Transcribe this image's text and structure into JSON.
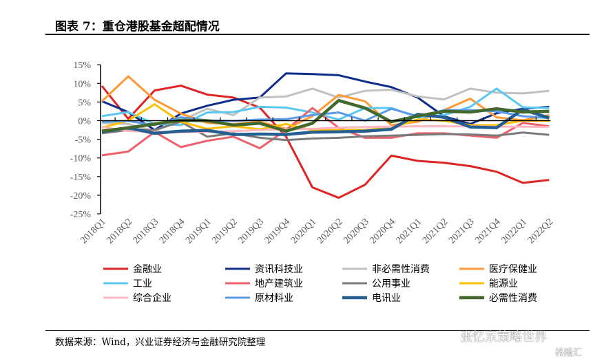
{
  "header": {
    "title": "图表 7：重仓港股基金超配情况"
  },
  "footer": {
    "source": "数据来源：Wind，兴业证券经济与金融研究院整理"
  },
  "watermark": {
    "text": "张忆东策略世界",
    "brand": "格隆汇"
  },
  "chart_data": {
    "type": "line",
    "title": "重仓港股基金超配情况",
    "xlabel": "",
    "ylabel": "",
    "ylim": [
      -25,
      15
    ],
    "yticks": [
      15,
      10,
      5,
      0,
      -5,
      -10,
      -15,
      -20,
      -25
    ],
    "ytick_labels": [
      "15%",
      "10%",
      "5%",
      "0%",
      "-5%",
      "-10%",
      "-15%",
      "-20%",
      "-25%"
    ],
    "categories": [
      "2018Q1",
      "2018Q2",
      "2018Q3",
      "2018Q4",
      "2019Q1",
      "2019Q2",
      "2019Q3",
      "2019Q4",
      "2020Q1",
      "2020Q2",
      "2020Q3",
      "2020Q4",
      "2021Q1",
      "2021Q2",
      "2021Q3",
      "2021Q4",
      "2022Q1",
      "2022Q2"
    ],
    "legend_position": "bottom",
    "series": [
      {
        "name": "金融业",
        "color": "#E02323",
        "width": 3,
        "values": [
          9.3,
          0.5,
          8.1,
          9.4,
          7.0,
          6.2,
          3.5,
          -4.3,
          -17.9,
          -20.7,
          -17.2,
          -9.4,
          -10.8,
          -11.3,
          -12.2,
          -13.7,
          -16.7,
          -15.9
        ]
      },
      {
        "name": "资讯科技业",
        "color": "#0F2D8A",
        "width": 3,
        "values": [
          5.2,
          2.3,
          -2.5,
          1.9,
          4.0,
          5.6,
          6.2,
          12.7,
          12.5,
          12.2,
          10.5,
          9.0,
          6.2,
          1.2,
          -0.9,
          2.0,
          3.2,
          3.7
        ]
      },
      {
        "name": "非必需性消费",
        "color": "#C0C0C0",
        "width": 3,
        "values": [
          -0.6,
          -0.9,
          -2.8,
          0.0,
          3.2,
          1.5,
          6.2,
          6.5,
          8.6,
          6.2,
          8.0,
          8.3,
          6.5,
          5.7,
          8.6,
          7.5,
          7.3,
          8.0
        ]
      },
      {
        "name": "医疗保健业",
        "color": "#FF9933",
        "width": 3,
        "values": [
          5.2,
          11.9,
          5.6,
          1.9,
          -0.6,
          -0.9,
          -0.3,
          -2.2,
          1.2,
          6.9,
          5.2,
          -1.2,
          -0.3,
          2.8,
          5.9,
          0.9,
          0.1,
          1.5
        ]
      },
      {
        "name": "工业",
        "color": "#5BC8F0",
        "width": 3,
        "values": [
          1.2,
          2.3,
          -0.9,
          -1.2,
          2.2,
          2.3,
          3.7,
          3.5,
          2.2,
          0.3,
          3.4,
          3.4,
          0.9,
          1.5,
          3.7,
          8.6,
          3.6,
          3.4
        ]
      },
      {
        "name": "地产建筑业",
        "color": "#F0606A",
        "width": 3,
        "values": [
          -9.3,
          -8.3,
          -3.0,
          -7.1,
          -5.4,
          -4.3,
          -7.4,
          -2.5,
          3.4,
          -1.9,
          -4.6,
          -4.6,
          -3.4,
          -3.4,
          -4.0,
          -4.6,
          -0.6,
          -1.5
        ]
      },
      {
        "name": "公用事业",
        "color": "#7A7A7A",
        "width": 3,
        "values": [
          -3.4,
          -2.5,
          -2.5,
          -0.3,
          -4.3,
          -3.4,
          -4.6,
          -5.2,
          -4.8,
          -4.6,
          -4.2,
          -4.0,
          -3.8,
          -3.6,
          -3.7,
          -4.0,
          -3.2,
          -3.8
        ]
      },
      {
        "name": "能源业",
        "color": "#FFC000",
        "width": 3,
        "values": [
          -1.9,
          0.0,
          4.4,
          -0.3,
          -2.2,
          -1.5,
          -2.3,
          -0.9,
          -2.6,
          -2.5,
          -2.5,
          -1.9,
          0.3,
          0.0,
          -1.2,
          -1.2,
          0.0,
          0.0
        ]
      },
      {
        "name": "综合企业",
        "color": "#FFB6C1",
        "width": 3,
        "values": [
          -1.7,
          -2.8,
          -3.0,
          -3.1,
          -3.0,
          -2.8,
          -2.5,
          -2.3,
          -2.2,
          -1.9,
          -1.7,
          -1.6,
          -1.5,
          -1.5,
          -1.5,
          -1.6,
          -1.6,
          -1.7
        ]
      },
      {
        "name": "原材料业",
        "color": "#5B9BE6",
        "width": 3,
        "values": [
          -0.3,
          -0.1,
          -1.2,
          0.9,
          0.1,
          -0.1,
          0.3,
          0.4,
          1.5,
          2.2,
          0.0,
          3.2,
          1.2,
          2.8,
          2.8,
          2.5,
          1.2,
          0.7
        ]
      },
      {
        "name": "电讯业",
        "color": "#255E91",
        "width": 4.5,
        "values": [
          -3.0,
          -1.9,
          -3.4,
          -2.8,
          -2.6,
          -3.7,
          -3.6,
          -3.7,
          -3.1,
          -3.0,
          -2.8,
          -2.3,
          1.7,
          0.9,
          -1.7,
          -1.9,
          3.0,
          0.7
        ]
      },
      {
        "name": "必需性消费",
        "color": "#43682B",
        "width": 4.5,
        "values": [
          -2.8,
          -1.9,
          -0.9,
          0.1,
          0.0,
          -1.2,
          -0.7,
          -2.8,
          -0.7,
          5.4,
          3.4,
          -0.3,
          1.2,
          2.5,
          2.3,
          3.2,
          2.3,
          2.5
        ]
      }
    ]
  }
}
